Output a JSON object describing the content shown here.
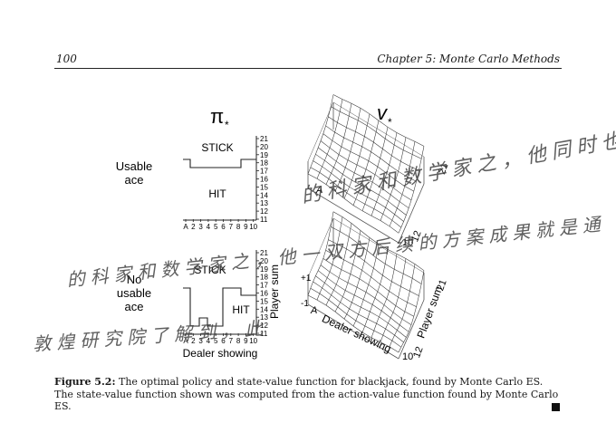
{
  "header": {
    "page_number": "100",
    "running_head": "Chapter 5: Monte Carlo Methods"
  },
  "figure": {
    "policy_title": "π",
    "policy_title_sub": "*",
    "value_title": "v",
    "value_title_sub": "*",
    "top_row_label_1": "Usable",
    "top_row_label_2": "ace",
    "bottom_row_label_1": "No",
    "bottom_row_label_2": "usable",
    "bottom_row_label_3": "ace",
    "stick_label": "STICK",
    "hit_label": "HIT",
    "y_axis_title": "Player sum",
    "x_axis_title": "Dealer showing",
    "policy_y_ticks": [
      "21",
      "20",
      "19",
      "18",
      "17",
      "16",
      "15",
      "14",
      "13",
      "12",
      "11"
    ],
    "policy_x_ticks": [
      "A",
      "2",
      "3",
      "4",
      "5",
      "6",
      "7",
      "8",
      "9",
      "10"
    ],
    "surface_plus_label": "+1",
    "surface_minus_label": "-1",
    "surface_ace_label": "A",
    "surface_ten_label": "10",
    "surface_twelve_label": "12",
    "surface_twentyone_label": "21",
    "surface_dealer_label": "Dealer showing",
    "surface_player_label": "Player sum"
  },
  "caption": {
    "label": "Figure 5.2:",
    "text": " The optimal policy and state-value function for blackjack, found by Monte Carlo ES. The state-value function shown was computed from the action-value function found by Monte Carlo ES."
  },
  "watermark": {
    "line1": "的科家和数学家之，他同时也是一位非学度讨刃",
    "line2": "的科家和数学家之，他一双方后续的方案成果就是通",
    "line3": "敦煌研究院了解到，此"
  }
}
